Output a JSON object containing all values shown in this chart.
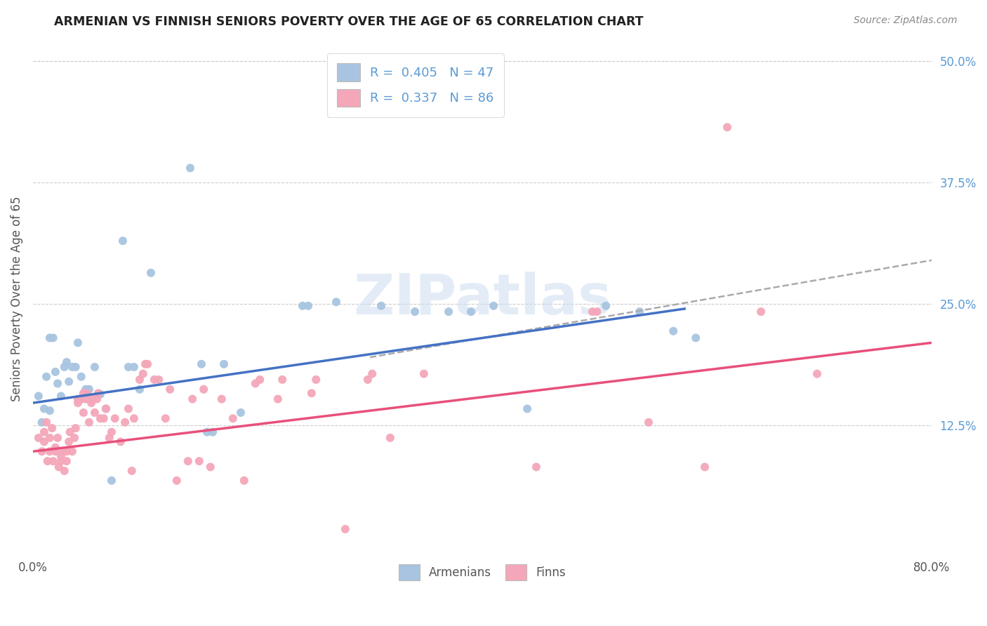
{
  "title": "ARMENIAN VS FINNISH SENIORS POVERTY OVER THE AGE OF 65 CORRELATION CHART",
  "source": "Source: ZipAtlas.com",
  "ylabel": "Seniors Poverty Over the Age of 65",
  "xlim": [
    0.0,
    0.8
  ],
  "ylim": [
    -0.01,
    0.52
  ],
  "yticks_right": [
    0.125,
    0.25,
    0.375,
    0.5
  ],
  "ytick_labels_right": [
    "12.5%",
    "25.0%",
    "37.5%",
    "50.0%"
  ],
  "right_axis_color": "#5b9bd5",
  "legend_R_armenian": "0.405",
  "legend_N_armenian": "47",
  "legend_R_finn": "0.337",
  "legend_N_finn": "86",
  "armenian_color": "#a8c4e0",
  "finn_color": "#f4a7b9",
  "armenian_line_color": "#4472c4",
  "finn_line_color": "#e8507a",
  "dash_line_color": "#aaaaaa",
  "watermark": "ZIPatlas",
  "background_color": "#ffffff",
  "armenian_line_x": [
    0.0,
    0.58
  ],
  "armenian_line_y": [
    0.148,
    0.245
  ],
  "finn_line_x": [
    0.0,
    0.8
  ],
  "finn_line_y": [
    0.098,
    0.21
  ],
  "dash_line_x": [
    0.3,
    0.8
  ],
  "dash_line_y": [
    0.195,
    0.295
  ],
  "armenian_scatter": [
    [
      0.005,
      0.155
    ],
    [
      0.008,
      0.128
    ],
    [
      0.01,
      0.142
    ],
    [
      0.012,
      0.175
    ],
    [
      0.015,
      0.14
    ],
    [
      0.015,
      0.215
    ],
    [
      0.018,
      0.215
    ],
    [
      0.02,
      0.18
    ],
    [
      0.022,
      0.168
    ],
    [
      0.025,
      0.155
    ],
    [
      0.028,
      0.185
    ],
    [
      0.03,
      0.19
    ],
    [
      0.032,
      0.17
    ],
    [
      0.035,
      0.185
    ],
    [
      0.038,
      0.185
    ],
    [
      0.04,
      0.21
    ],
    [
      0.043,
      0.175
    ],
    [
      0.047,
      0.162
    ],
    [
      0.05,
      0.162
    ],
    [
      0.055,
      0.185
    ],
    [
      0.06,
      0.157
    ],
    [
      0.065,
      0.142
    ],
    [
      0.07,
      0.068
    ],
    [
      0.08,
      0.315
    ],
    [
      0.085,
      0.185
    ],
    [
      0.09,
      0.185
    ],
    [
      0.095,
      0.162
    ],
    [
      0.105,
      0.282
    ],
    [
      0.14,
      0.39
    ],
    [
      0.15,
      0.188
    ],
    [
      0.155,
      0.118
    ],
    [
      0.16,
      0.118
    ],
    [
      0.17,
      0.188
    ],
    [
      0.185,
      0.138
    ],
    [
      0.24,
      0.248
    ],
    [
      0.245,
      0.248
    ],
    [
      0.27,
      0.252
    ],
    [
      0.31,
      0.248
    ],
    [
      0.34,
      0.242
    ],
    [
      0.37,
      0.242
    ],
    [
      0.39,
      0.242
    ],
    [
      0.41,
      0.248
    ],
    [
      0.44,
      0.142
    ],
    [
      0.51,
      0.248
    ],
    [
      0.54,
      0.242
    ],
    [
      0.57,
      0.222
    ],
    [
      0.59,
      0.215
    ]
  ],
  "finn_scatter": [
    [
      0.005,
      0.112
    ],
    [
      0.008,
      0.098
    ],
    [
      0.01,
      0.108
    ],
    [
      0.01,
      0.118
    ],
    [
      0.012,
      0.128
    ],
    [
      0.013,
      0.088
    ],
    [
      0.015,
      0.098
    ],
    [
      0.015,
      0.112
    ],
    [
      0.017,
      0.122
    ],
    [
      0.018,
      0.088
    ],
    [
      0.02,
      0.098
    ],
    [
      0.02,
      0.102
    ],
    [
      0.022,
      0.112
    ],
    [
      0.023,
      0.082
    ],
    [
      0.025,
      0.088
    ],
    [
      0.025,
      0.093
    ],
    [
      0.027,
      0.098
    ],
    [
      0.028,
      0.078
    ],
    [
      0.03,
      0.088
    ],
    [
      0.03,
      0.098
    ],
    [
      0.032,
      0.108
    ],
    [
      0.033,
      0.118
    ],
    [
      0.035,
      0.098
    ],
    [
      0.037,
      0.112
    ],
    [
      0.038,
      0.122
    ],
    [
      0.04,
      0.148
    ],
    [
      0.04,
      0.152
    ],
    [
      0.042,
      0.152
    ],
    [
      0.043,
      0.152
    ],
    [
      0.045,
      0.158
    ],
    [
      0.045,
      0.138
    ],
    [
      0.047,
      0.152
    ],
    [
      0.048,
      0.158
    ],
    [
      0.05,
      0.128
    ],
    [
      0.052,
      0.148
    ],
    [
      0.053,
      0.152
    ],
    [
      0.055,
      0.138
    ],
    [
      0.057,
      0.152
    ],
    [
      0.058,
      0.158
    ],
    [
      0.06,
      0.132
    ],
    [
      0.063,
      0.132
    ],
    [
      0.065,
      0.142
    ],
    [
      0.068,
      0.112
    ],
    [
      0.07,
      0.118
    ],
    [
      0.073,
      0.132
    ],
    [
      0.078,
      0.108
    ],
    [
      0.082,
      0.128
    ],
    [
      0.085,
      0.142
    ],
    [
      0.088,
      0.078
    ],
    [
      0.09,
      0.132
    ],
    [
      0.095,
      0.172
    ],
    [
      0.098,
      0.178
    ],
    [
      0.1,
      0.188
    ],
    [
      0.102,
      0.188
    ],
    [
      0.108,
      0.172
    ],
    [
      0.112,
      0.172
    ],
    [
      0.118,
      0.132
    ],
    [
      0.122,
      0.162
    ],
    [
      0.128,
      0.068
    ],
    [
      0.138,
      0.088
    ],
    [
      0.142,
      0.152
    ],
    [
      0.148,
      0.088
    ],
    [
      0.152,
      0.162
    ],
    [
      0.158,
      0.082
    ],
    [
      0.168,
      0.152
    ],
    [
      0.178,
      0.132
    ],
    [
      0.188,
      0.068
    ],
    [
      0.198,
      0.168
    ],
    [
      0.202,
      0.172
    ],
    [
      0.218,
      0.152
    ],
    [
      0.222,
      0.172
    ],
    [
      0.248,
      0.158
    ],
    [
      0.252,
      0.172
    ],
    [
      0.278,
      0.018
    ],
    [
      0.298,
      0.172
    ],
    [
      0.302,
      0.178
    ],
    [
      0.318,
      0.112
    ],
    [
      0.348,
      0.178
    ],
    [
      0.448,
      0.082
    ],
    [
      0.498,
      0.242
    ],
    [
      0.502,
      0.242
    ],
    [
      0.548,
      0.128
    ],
    [
      0.598,
      0.082
    ],
    [
      0.618,
      0.432
    ],
    [
      0.648,
      0.242
    ],
    [
      0.698,
      0.178
    ]
  ]
}
